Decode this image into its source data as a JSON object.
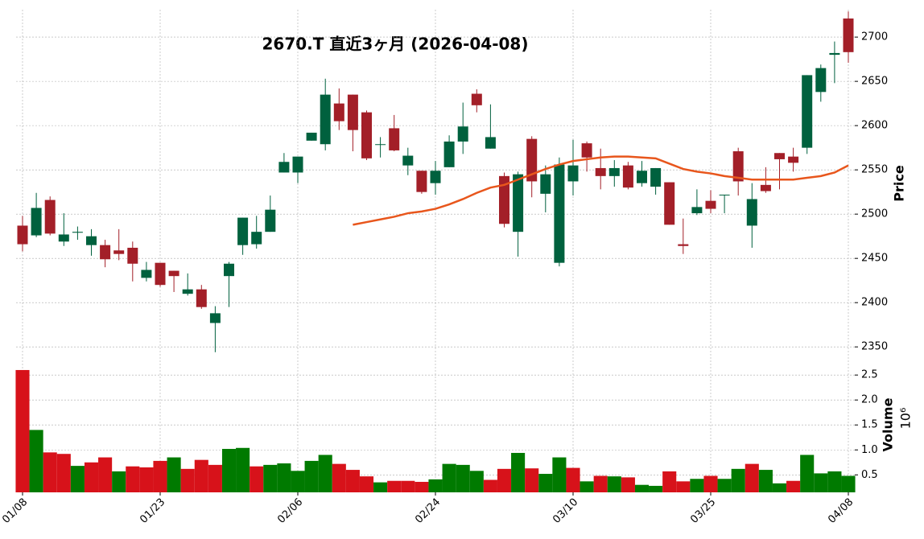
{
  "chart_data": {
    "type": "candlestick",
    "title": "2670.T  直近3ヶ月  (2026-04-08)",
    "categories": [
      "01/08",
      null,
      null,
      null,
      null,
      null,
      null,
      null,
      null,
      null,
      "01/23",
      null,
      null,
      null,
      null,
      null,
      null,
      null,
      null,
      null,
      "02/06",
      null,
      null,
      null,
      null,
      null,
      null,
      null,
      null,
      null,
      "02/24",
      null,
      null,
      null,
      null,
      null,
      null,
      null,
      null,
      null,
      "03/10",
      null,
      null,
      null,
      null,
      null,
      null,
      null,
      null,
      null,
      "03/25",
      null,
      null,
      null,
      null,
      null,
      null,
      null,
      null,
      null,
      "04/08"
    ],
    "open": [
      2487,
      2476,
      2516,
      2469,
      2479,
      2465,
      2465,
      2459,
      2462,
      2428,
      2445,
      2436,
      2410,
      2415,
      2377,
      2430,
      2465,
      2466,
      2480,
      2547,
      2547,
      2583,
      2579,
      2625,
      2635,
      2615,
      2579,
      2597,
      2555,
      2549,
      2535,
      2553,
      2582,
      2636,
      2574,
      2543,
      2480,
      2585,
      2523,
      2445,
      2537,
      2580,
      2552,
      2543,
      2555,
      2535,
      2531,
      2536,
      2466,
      2501,
      2515,
      2522,
      2571,
      2487,
      2533,
      2569,
      2565,
      2575,
      2638,
      2680,
      2721
    ],
    "high": [
      2498,
      2524,
      2520,
      2501,
      2486,
      2483,
      2471,
      2483,
      2469,
      2446,
      2445,
      2436,
      2433,
      2420,
      2396,
      2446,
      2496,
      2498,
      2521,
      2569,
      2565,
      2592,
      2653,
      2642,
      2635,
      2617,
      2587,
      2612,
      2575,
      2549,
      2560,
      2589,
      2626,
      2641,
      2624,
      2547,
      2548,
      2588,
      2555,
      2564,
      2584,
      2582,
      2574,
      2561,
      2559,
      2560,
      2552,
      2536,
      2495,
      2528,
      2527,
      2522,
      2575,
      2535,
      2553,
      2569,
      2575,
      2657,
      2669,
      2695,
      2729
    ],
    "low": [
      2458,
      2474,
      2476,
      2464,
      2471,
      2453,
      2440,
      2448,
      2424,
      2424,
      2418,
      2412,
      2408,
      2393,
      2344,
      2395,
      2454,
      2461,
      2480,
      2547,
      2535,
      2583,
      2572,
      2595,
      2571,
      2561,
      2564,
      2571,
      2544,
      2523,
      2522,
      2553,
      2568,
      2615,
      2574,
      2485,
      2452,
      2519,
      2502,
      2441,
      2521,
      2548,
      2528,
      2531,
      2528,
      2531,
      2522,
      2488,
      2455,
      2499,
      2501,
      2501,
      2521,
      2462,
      2524,
      2528,
      2548,
      2568,
      2627,
      2648,
      2671
    ],
    "close": [
      2466,
      2507,
      2478,
      2477,
      2480,
      2475,
      2449,
      2455,
      2444,
      2437,
      2420,
      2430,
      2415,
      2395,
      2388,
      2444,
      2496,
      2480,
      2505,
      2559,
      2565,
      2592,
      2635,
      2605,
      2595,
      2563,
      2579,
      2572,
      2566,
      2525,
      2549,
      2582,
      2599,
      2623,
      2587,
      2489,
      2545,
      2537,
      2545,
      2556,
      2555,
      2564,
      2543,
      2552,
      2530,
      2549,
      2552,
      2488,
      2464,
      2508,
      2506,
      2522,
      2537,
      2517,
      2526,
      2562,
      2558,
      2657,
      2665,
      2682,
      2683
    ],
    "up_color": "#00613e",
    "down_color": "#a31f28",
    "moving_average": {
      "color": "#e8561c",
      "values": [
        null,
        null,
        null,
        null,
        null,
        null,
        null,
        null,
        null,
        null,
        null,
        null,
        null,
        null,
        null,
        null,
        null,
        null,
        null,
        null,
        null,
        null,
        null,
        null,
        2488,
        2491,
        2494,
        2497,
        2501,
        2503,
        2506,
        2511,
        2517,
        2524,
        2530,
        2533,
        2539,
        2545,
        2551,
        2556,
        2560,
        2562,
        2564,
        2565,
        2565,
        2564,
        2563,
        2557,
        2551,
        2548,
        2546,
        2543,
        2541,
        2539,
        2539,
        2539,
        2539,
        2541,
        2543,
        2547,
        2555
      ]
    },
    "ylabel": "Price",
    "ylim": [
      2342,
      2731
    ],
    "yticks": [
      2350,
      2400,
      2450,
      2500,
      2550,
      2600,
      2650,
      2700
    ],
    "volume": {
      "ylabel": "Volume",
      "exponent": "10⁶",
      "values": [
        2.6,
        1.4,
        0.95,
        0.92,
        0.68,
        0.75,
        0.85,
        0.57,
        0.67,
        0.65,
        0.78,
        0.85,
        0.62,
        0.8,
        0.7,
        1.02,
        1.04,
        0.67,
        0.7,
        0.73,
        0.58,
        0.78,
        0.9,
        0.72,
        0.6,
        0.47,
        0.35,
        0.38,
        0.38,
        0.36,
        0.41,
        0.72,
        0.7,
        0.58,
        0.4,
        0.62,
        0.94,
        0.63,
        0.52,
        0.85,
        0.64,
        0.37,
        0.48,
        0.47,
        0.45,
        0.3,
        0.28,
        0.57,
        0.37,
        0.42,
        0.48,
        0.42,
        0.62,
        0.72,
        0.6,
        0.33,
        0.38,
        0.9,
        0.53,
        0.57,
        0.48
      ],
      "colors": [
        "#d7121a",
        "#007a00",
        "#d7121a",
        "#d7121a",
        "#007a00",
        "#d7121a",
        "#d7121a",
        "#007a00",
        "#d7121a",
        "#d7121a",
        "#d7121a",
        "#007a00",
        "#d7121a",
        "#d7121a",
        "#d7121a",
        "#007a00",
        "#007a00",
        "#d7121a",
        "#007a00",
        "#007a00",
        "#007a00",
        "#007a00",
        "#007a00",
        "#d7121a",
        "#d7121a",
        "#d7121a",
        "#007a00",
        "#d7121a",
        "#d7121a",
        "#d7121a",
        "#007a00",
        "#007a00",
        "#007a00",
        "#007a00",
        "#d7121a",
        "#d7121a",
        "#007a00",
        "#d7121a",
        "#007a00",
        "#007a00",
        "#d7121a",
        "#007a00",
        "#d7121a",
        "#007a00",
        "#d7121a",
        "#007a00",
        "#007a00",
        "#d7121a",
        "#d7121a",
        "#007a00",
        "#d7121a",
        "#007a00",
        "#007a00",
        "#d7121a",
        "#007a00",
        "#007a00",
        "#d7121a",
        "#007a00",
        "#007a00",
        "#007a00",
        "#007a00"
      ],
      "ylim": [
        0.15,
        2.68
      ],
      "yticks": [
        0.5,
        {
          "value": 1.0,
          "label": "1.0"
        },
        1.5,
        {
          "value": 2.0,
          "label": "2.0"
        },
        2.5
      ]
    },
    "grid": true
  }
}
